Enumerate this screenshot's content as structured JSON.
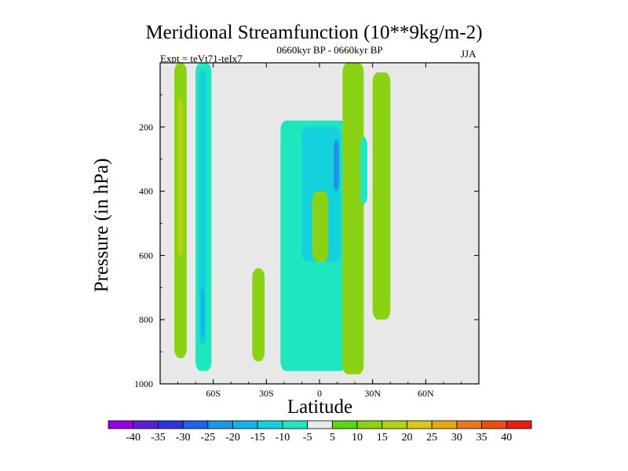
{
  "chart_data": {
    "type": "contour",
    "title": "Meridional Streamfunction (10**9kg/m-2)",
    "subtitle": "0660kyr BP - 0660kyr BP",
    "left_string": "Expt = teVt71-teIx7",
    "right_string": "JJA",
    "xlabel": "Latitude",
    "ylabel": "Pressure (in hPa)",
    "xlim": [
      -90,
      90
    ],
    "ylim": [
      1000,
      0
    ],
    "x_ticks": [
      {
        "value": -60,
        "label": "60S"
      },
      {
        "value": -30,
        "label": "30S"
      },
      {
        "value": 0,
        "label": "0"
      },
      {
        "value": 30,
        "label": "30N"
      },
      {
        "value": 60,
        "label": "60N"
      }
    ],
    "y_ticks": [
      {
        "value": 200,
        "label": "200"
      },
      {
        "value": 400,
        "label": "400"
      },
      {
        "value": 600,
        "label": "600"
      },
      {
        "value": 800,
        "label": "800"
      },
      {
        "value": 1000,
        "label": "1000"
      }
    ],
    "background_value_range": [
      -5,
      5
    ],
    "regions": [
      {
        "name": "sh-high-lat-positive",
        "level": 10,
        "lat_min": -82,
        "lat_max": -75,
        "p_top": 0,
        "p_bottom": 920
      },
      {
        "name": "sh-high-lat-positive-core",
        "level": 15,
        "lat_min": -80,
        "lat_max": -77,
        "p_top": 110,
        "p_bottom": 600
      },
      {
        "name": "sh-60s-negative",
        "level": -10,
        "lat_min": -70,
        "lat_max": -61,
        "p_top": 0,
        "p_bottom": 960
      },
      {
        "name": "sh-60s-negative-core",
        "level": -15,
        "lat_min": -68,
        "lat_max": -64,
        "p_top": 20,
        "p_bottom": 880
      },
      {
        "name": "sh-60s-negative-max",
        "level": -20,
        "lat_min": -67,
        "lat_max": -65,
        "p_top": 700,
        "p_bottom": 860
      },
      {
        "name": "sh-35s-positive",
        "level": 10,
        "lat_min": -38,
        "lat_max": -31,
        "p_top": 640,
        "p_bottom": 930
      },
      {
        "name": "equatorial-negative-cell",
        "level": -10,
        "lat_min": -22,
        "lat_max": 15,
        "p_top": 180,
        "p_bottom": 960
      },
      {
        "name": "equatorial-negative-core",
        "level": -15,
        "lat_min": -10,
        "lat_max": 12,
        "p_top": 200,
        "p_bottom": 620
      },
      {
        "name": "equatorial-negative-max",
        "level": -25,
        "lat_min": 8,
        "lat_max": 11,
        "p_top": 240,
        "p_bottom": 400
      },
      {
        "name": "equatorial-positive-tongue",
        "level": 10,
        "lat_min": -4,
        "lat_max": 5,
        "p_top": 400,
        "p_bottom": 620
      },
      {
        "name": "nh-20n-positive",
        "level": 10,
        "lat_min": 13,
        "lat_max": 25,
        "p_top": 0,
        "p_bottom": 970
      },
      {
        "name": "nh-25n-negative",
        "level": -10,
        "lat_min": 23,
        "lat_max": 27,
        "p_top": 230,
        "p_bottom": 440
      },
      {
        "name": "nh-35n-positive",
        "level": 10,
        "lat_min": 30,
        "lat_max": 40,
        "p_top": 30,
        "p_bottom": 800
      }
    ],
    "colorbar": {
      "levels": [
        "-40",
        "-35",
        "-30",
        "-25",
        "-20",
        "-15",
        "-10",
        "-5",
        "5",
        "10",
        "15",
        "20",
        "25",
        "30",
        "35",
        "40"
      ],
      "colors": [
        "#9a00e6",
        "#5a1edc",
        "#3232dc",
        "#1e64e6",
        "#1e96e6",
        "#14b4e6",
        "#14d2dc",
        "#1ee6be",
        "#e8e8e8",
        "#5ad714",
        "#8cd214",
        "#b4d214",
        "#dcc814",
        "#e6aa14",
        "#e6781e",
        "#e65014",
        "#e61e14"
      ]
    }
  }
}
